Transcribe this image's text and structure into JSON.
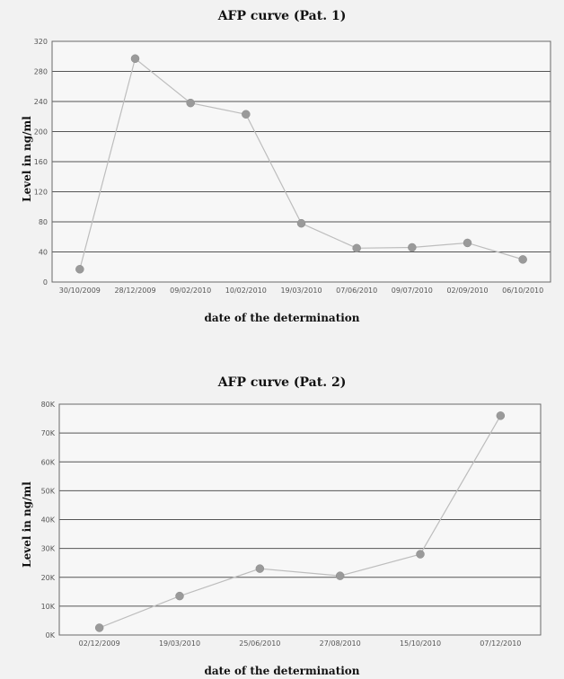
{
  "chart_data": [
    {
      "type": "line",
      "title": "AFP curve (Pat. 1)",
      "xlabel": "date of the determination",
      "ylabel": "Level in ng/ml",
      "categories": [
        "30/10/2009",
        "28/12/2009",
        "09/02/2010",
        "10/02/2010",
        "19/03/2010",
        "07/06/2010",
        "09/07/2010",
        "02/09/2010",
        "06/10/2010"
      ],
      "series": [
        {
          "values": [
            17,
            297,
            238,
            223,
            78,
            45,
            46,
            52,
            30
          ]
        }
      ],
      "yticks": [
        0,
        40,
        80,
        120,
        160,
        200,
        240,
        280,
        320
      ],
      "ytick_labels": [
        "0",
        "40",
        "80",
        "120",
        "160",
        "200",
        "240",
        "280",
        "320"
      ],
      "ylim": [
        0,
        320
      ],
      "grid": true,
      "line_color": "#bdbdbd",
      "marker_color": "#9a9a9a"
    },
    {
      "type": "line",
      "title": "AFP curve (Pat. 2)",
      "xlabel": "date of the determination",
      "ylabel": "Level in ng/ml",
      "categories": [
        "02/12/2009",
        "19/03/2010",
        "25/06/2010",
        "27/08/2010",
        "15/10/2010",
        "07/12/2010"
      ],
      "series": [
        {
          "values": [
            2500,
            13500,
            23000,
            20500,
            28000,
            76000
          ]
        }
      ],
      "yticks": [
        0,
        10000,
        20000,
        30000,
        40000,
        50000,
        60000,
        70000,
        80000
      ],
      "ytick_labels": [
        "0K",
        "10K",
        "20K",
        "30K",
        "40K",
        "50K",
        "60K",
        "70K",
        "80K"
      ],
      "ylim": [
        0,
        80000
      ],
      "grid": true,
      "line_color": "#bdbdbd",
      "marker_color": "#9a9a9a"
    }
  ]
}
